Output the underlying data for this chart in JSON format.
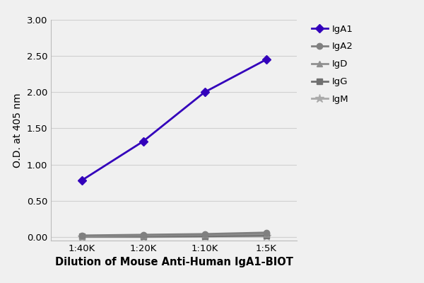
{
  "x_labels": [
    "1:40K",
    "1:20K",
    "1:10K",
    "1:5K"
  ],
  "x_positions": [
    1,
    2,
    3,
    4
  ],
  "series_order": [
    "IgA1",
    "IgA2",
    "IgD",
    "IgG",
    "IgM"
  ],
  "series": {
    "IgA1": {
      "values": [
        0.78,
        1.32,
        2.0,
        2.45
      ],
      "color": "#3300bb",
      "marker": "D",
      "markersize": 6,
      "linewidth": 2.0,
      "zorder": 5
    },
    "IgA2": {
      "values": [
        0.02,
        0.03,
        0.04,
        0.06
      ],
      "color": "#808080",
      "marker": "o",
      "markersize": 6,
      "linewidth": 2.0,
      "zorder": 4
    },
    "IgD": {
      "values": [
        0.01,
        0.02,
        0.03,
        0.04
      ],
      "color": "#909090",
      "marker": "^",
      "markersize": 6,
      "linewidth": 2.0,
      "zorder": 3
    },
    "IgG": {
      "values": [
        0.005,
        0.005,
        0.01,
        0.02
      ],
      "color": "#707070",
      "marker": "s",
      "markersize": 6,
      "linewidth": 2.0,
      "zorder": 2
    },
    "IgM": {
      "values": [
        0.0,
        0.0,
        0.005,
        0.01
      ],
      "color": "#aaaaaa",
      "marker": "*",
      "markersize": 9,
      "linewidth": 2.0,
      "zorder": 1
    }
  },
  "xlabel": "Dilution of Mouse Anti-Human IgA1-BIOT",
  "ylabel": "O.D. at 405 nm",
  "ylim": [
    -0.05,
    3.0
  ],
  "yticks": [
    0.0,
    0.5,
    1.0,
    1.5,
    2.0,
    2.5,
    3.0
  ],
  "background_color": "#f0f0f0",
  "plot_bg_color": "#f0f0f0",
  "grid_color": "#d0d0d0",
  "legend_fontsize": 9.5,
  "axis_label_fontsize": 10,
  "tick_fontsize": 9.5,
  "xlabel_fontsize": 10.5
}
